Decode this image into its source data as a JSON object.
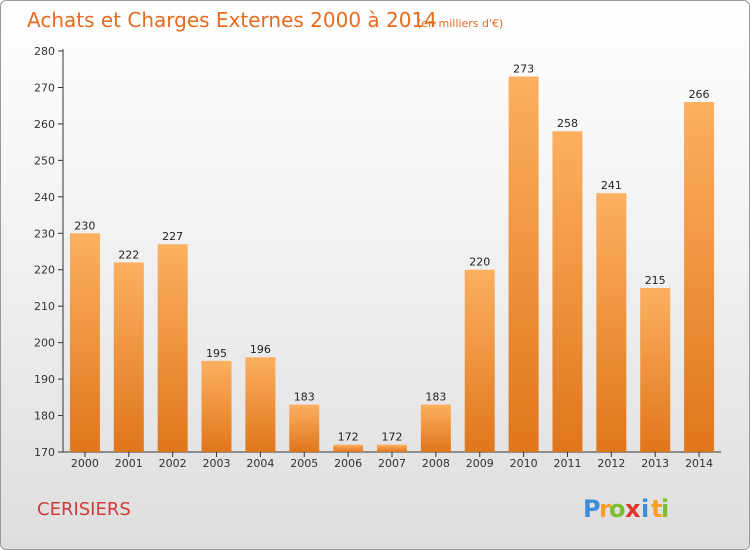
{
  "chart_data": {
    "type": "bar",
    "title": "Achats et Charges Externes 2000 à 2014",
    "subtitle": "(en milliers d'€)",
    "categories": [
      "2000",
      "2001",
      "2002",
      "2003",
      "2004",
      "2005",
      "2006",
      "2007",
      "2008",
      "2009",
      "2010",
      "2011",
      "2012",
      "2013",
      "2014"
    ],
    "values": [
      230,
      222,
      227,
      195,
      196,
      183,
      172,
      172,
      183,
      220,
      273,
      258,
      241,
      215,
      266
    ],
    "ylim": [
      170,
      280
    ],
    "yticks": [
      170,
      180,
      190,
      200,
      210,
      220,
      230,
      240,
      250,
      260,
      270,
      280
    ],
    "xlabel": "",
    "ylabel": "",
    "grid": false,
    "bar_color_light": "#fcb060",
    "bar_color_dark": "#e0761c"
  },
  "footer": {
    "location": "CERISIERS",
    "brand": {
      "letters": [
        "P",
        "r",
        "o",
        "x",
        "i",
        "t",
        "i"
      ],
      "colors": [
        "#3d8ed8",
        "#f5a023",
        "#7bbf2b",
        "#e4322b",
        "#3d8ed8",
        "#f5a023",
        "#7bbf2b"
      ]
    }
  }
}
